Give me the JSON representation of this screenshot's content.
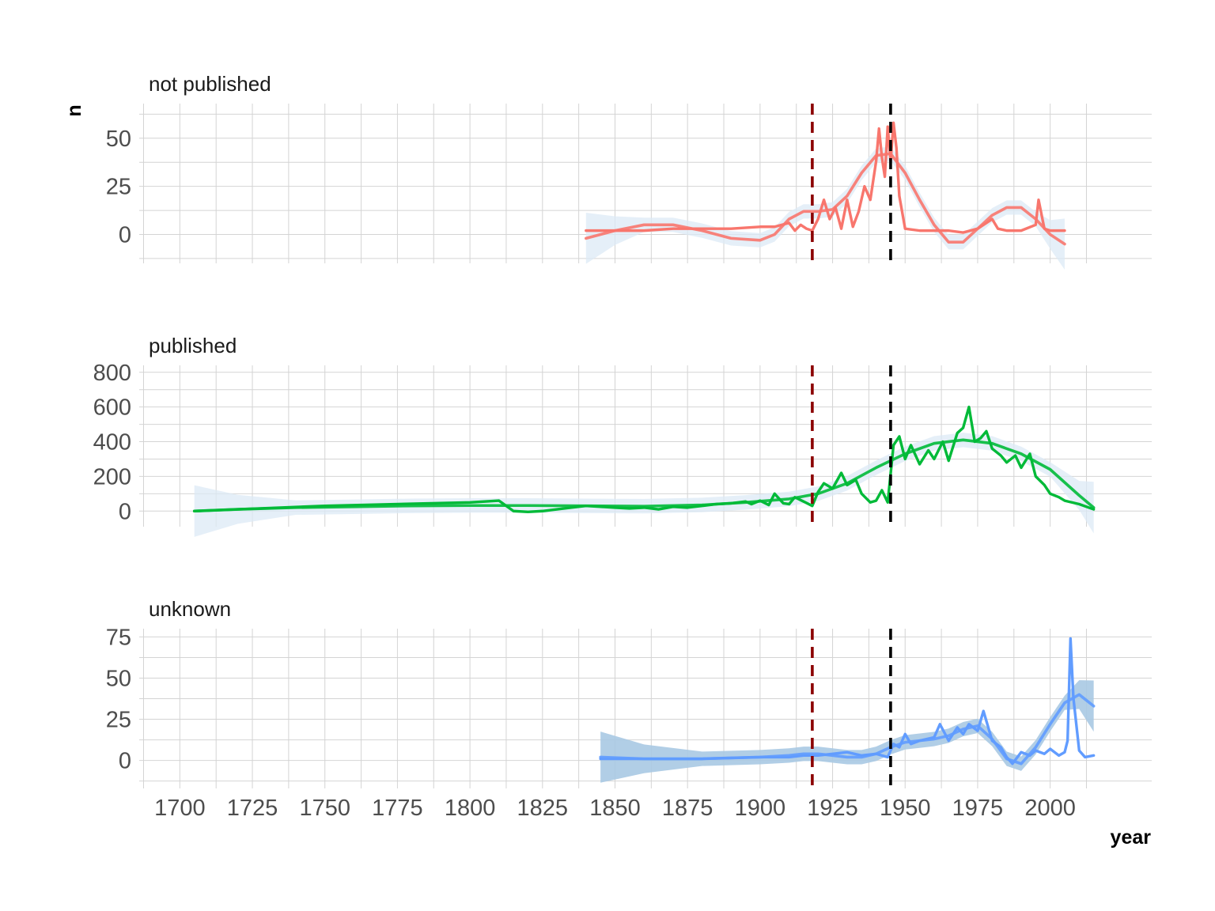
{
  "chart_data": {
    "type": "line",
    "xlabel": "year",
    "ylabel": "n",
    "xlim": [
      1686,
      2035
    ],
    "x_ticks": [
      1700,
      1725,
      1750,
      1775,
      1800,
      1825,
      1850,
      1875,
      1900,
      1925,
      1950,
      1975,
      2000
    ],
    "x_tick_labels": [
      "1700",
      "1725",
      "1750",
      "1775",
      "1800",
      "1825",
      "1850",
      "1875",
      "1900",
      "1925",
      "1950",
      "1975",
      "2000"
    ],
    "grid": true,
    "vertical_reference_lines": [
      {
        "x": 1918,
        "style": "dashed",
        "color": "#8b0000"
      },
      {
        "x": 1945,
        "style": "dashed",
        "color": "#000000"
      }
    ],
    "panels": [
      {
        "title": "not published",
        "color": "#F8766D",
        "ribbon_color": "#dce9f5",
        "ylim": [
          -15,
          68
        ],
        "y_ticks": [
          0,
          25,
          50
        ],
        "y_tick_labels": [
          "0",
          "25",
          "50"
        ],
        "series": [
          {
            "kind": "raw",
            "x": [
              1840,
              1850,
              1860,
              1870,
              1880,
              1890,
              1900,
              1905,
              1910,
              1912,
              1914,
              1916,
              1918,
              1920,
              1922,
              1924,
              1926,
              1928,
              1930,
              1932,
              1934,
              1936,
              1938,
              1940,
              1941,
              1942,
              1943,
              1944,
              1945,
              1946,
              1947,
              1948,
              1950,
              1955,
              1960,
              1965,
              1970,
              1975,
              1980,
              1982,
              1985,
              1990,
              1995,
              1996,
              1998,
              2000,
              2005
            ],
            "y": [
              2,
              2,
              2,
              3,
              3,
              3,
              4,
              4,
              6,
              2,
              5,
              3,
              2,
              8,
              18,
              8,
              14,
              3,
              18,
              4,
              12,
              25,
              18,
              38,
              55,
              40,
              30,
              56,
              38,
              58,
              45,
              20,
              3,
              2,
              2,
              2,
              1,
              3,
              8,
              3,
              2,
              2,
              5,
              18,
              3,
              2,
              2
            ]
          },
          {
            "kind": "smooth",
            "x": [
              1840,
              1850,
              1860,
              1870,
              1880,
              1890,
              1900,
              1905,
              1910,
              1915,
              1920,
              1925,
              1930,
              1935,
              1940,
              1945,
              1950,
              1955,
              1960,
              1965,
              1970,
              1975,
              1980,
              1985,
              1990,
              1995,
              2000,
              2005
            ],
            "y": [
              -2,
              2,
              5,
              5,
              2,
              -2,
              -3,
              0,
              8,
              12,
              12,
              13,
              20,
              32,
              41,
              42,
              32,
              18,
              5,
              -4,
              -4,
              3,
              10,
              14,
              14,
              8,
              0,
              -5
            ]
          }
        ]
      },
      {
        "title": "published",
        "color": "#00BA38",
        "ribbon_color": "#dce9f5",
        "ylim": [
          -90,
          840
        ],
        "y_ticks": [
          0,
          200,
          400,
          600,
          800
        ],
        "y_tick_labels": [
          "0",
          "200",
          "400",
          "600",
          "800"
        ],
        "series": [
          {
            "kind": "raw",
            "x": [
              1705,
              1750,
              1800,
              1810,
              1815,
              1820,
              1825,
              1830,
              1835,
              1840,
              1845,
              1850,
              1855,
              1860,
              1865,
              1870,
              1875,
              1880,
              1885,
              1890,
              1895,
              1897,
              1900,
              1903,
              1905,
              1908,
              1910,
              1912,
              1915,
              1918,
              1920,
              1922,
              1925,
              1928,
              1930,
              1933,
              1935,
              1938,
              1940,
              1942,
              1944,
              1946,
              1948,
              1950,
              1952,
              1955,
              1958,
              1960,
              1963,
              1965,
              1968,
              1970,
              1972,
              1974,
              1976,
              1978,
              1980,
              1983,
              1985,
              1988,
              1990,
              1993,
              1995,
              1998,
              2000,
              2003,
              2005,
              2010,
              2015
            ],
            "y": [
              0,
              30,
              50,
              60,
              0,
              -5,
              0,
              10,
              20,
              30,
              25,
              20,
              15,
              20,
              10,
              25,
              20,
              30,
              40,
              45,
              55,
              40,
              60,
              35,
              100,
              45,
              40,
              80,
              55,
              30,
              110,
              160,
              130,
              220,
              150,
              180,
              100,
              50,
              60,
              120,
              50,
              380,
              430,
              300,
              380,
              270,
              350,
              300,
              400,
              290,
              450,
              480,
              600,
              400,
              420,
              460,
              360,
              320,
              280,
              320,
              250,
              330,
              200,
              150,
              100,
              80,
              60,
              40,
              10
            ]
          },
          {
            "kind": "smooth",
            "x": [
              1705,
              1720,
              1740,
              1760,
              1780,
              1800,
              1820,
              1840,
              1860,
              1880,
              1895,
              1910,
              1920,
              1930,
              1940,
              1950,
              1960,
              1970,
              1980,
              1990,
              2000,
              2010,
              2015
            ],
            "y": [
              0,
              10,
              20,
              25,
              30,
              32,
              32,
              30,
              28,
              35,
              50,
              70,
              100,
              160,
              250,
              330,
              390,
              410,
              390,
              330,
              240,
              90,
              20
            ]
          }
        ]
      },
      {
        "title": "unknown",
        "color": "#619CFF",
        "ribbon_color": "#a9c9e3",
        "ylim": [
          -17,
          80
        ],
        "y_ticks": [
          0,
          25,
          50,
          75
        ],
        "y_tick_labels": [
          "0",
          "25",
          "50",
          "75"
        ],
        "series": [
          {
            "kind": "raw",
            "x": [
              1845,
              1860,
              1880,
              1900,
              1910,
              1915,
              1920,
              1925,
              1930,
              1935,
              1940,
              1944,
              1946,
              1948,
              1950,
              1952,
              1955,
              1960,
              1962,
              1965,
              1968,
              1970,
              1972,
              1975,
              1977,
              1980,
              1983,
              1985,
              1987,
              1990,
              1993,
              1995,
              1998,
              2000,
              2003,
              2005,
              2006,
              2007,
              2008,
              2010,
              2012,
              2015
            ],
            "y": [
              1,
              1,
              1,
              2,
              2,
              3,
              3,
              4,
              5,
              3,
              4,
              2,
              10,
              8,
              16,
              10,
              12,
              14,
              22,
              12,
              20,
              16,
              22,
              18,
              30,
              12,
              8,
              2,
              -2,
              5,
              3,
              6,
              4,
              7,
              3,
              5,
              12,
              74,
              38,
              6,
              2,
              3
            ]
          },
          {
            "kind": "smooth",
            "x": [
              1845,
              1860,
              1880,
              1900,
              1910,
              1915,
              1920,
              1925,
              1930,
              1935,
              1940,
              1945,
              1950,
              1955,
              1960,
              1965,
              1970,
              1975,
              1980,
              1985,
              1990,
              1995,
              2000,
              2005,
              2010,
              2015
            ],
            "y": [
              2,
              1,
              1,
              2,
              3,
              4,
              4,
              3,
              2,
              2,
              4,
              8,
              11,
              12,
              13,
              15,
              19,
              21,
              13,
              1,
              -2,
              8,
              22,
              35,
              40,
              33
            ]
          }
        ]
      }
    ]
  }
}
